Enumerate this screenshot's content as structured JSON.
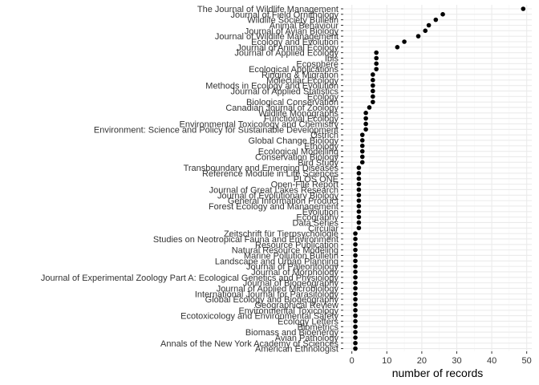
{
  "chart_data": {
    "type": "scatter",
    "title": "",
    "xlabel": "number of records",
    "ylabel": "",
    "xlim": [
      0,
      50
    ],
    "x_ticks": [
      0,
      10,
      20,
      30,
      40,
      50
    ],
    "grid": true,
    "points": [
      {
        "label": "The Journal of Wildlife Management",
        "value": 49
      },
      {
        "label": "Journal of Field Ornithology",
        "value": 26
      },
      {
        "label": "Wildlife Society Bulletin",
        "value": 24
      },
      {
        "label": "Animal Behaviour",
        "value": 22
      },
      {
        "label": "Journal of Avian Biology",
        "value": 21
      },
      {
        "label": "Journal of Wildlife Management",
        "value": 19
      },
      {
        "label": "Ecology and Evolution",
        "value": 15
      },
      {
        "label": "Journal of Animal Ecology",
        "value": 13
      },
      {
        "label": "Journal of Applied Ecology",
        "value": 7
      },
      {
        "label": "Ibis",
        "value": 7
      },
      {
        "label": "Ecosphere",
        "value": 7
      },
      {
        "label": "Ecological Applications",
        "value": 7
      },
      {
        "label": "Ringing & Migration",
        "value": 6
      },
      {
        "label": "Molecular Ecology",
        "value": 6
      },
      {
        "label": "Methods in Ecology and Evolution",
        "value": 6
      },
      {
        "label": "Journal of Applied Statistics",
        "value": 6
      },
      {
        "label": "Ecology",
        "value": 6
      },
      {
        "label": "Biological Conservation",
        "value": 6
      },
      {
        "label": "Canadian Journal of Zoology",
        "value": 5
      },
      {
        "label": "Wildlife Monographs",
        "value": 4
      },
      {
        "label": "Functional Ecology",
        "value": 4
      },
      {
        "label": "Environmental Toxicology and Chemistry",
        "value": 4
      },
      {
        "label": "Environment: Science and Policy for Sustainable Development",
        "value": 4
      },
      {
        "label": "Ostrich",
        "value": 3
      },
      {
        "label": "Global Change Biology",
        "value": 3
      },
      {
        "label": "Ethology",
        "value": 3
      },
      {
        "label": "Ecological Modelling",
        "value": 3
      },
      {
        "label": "Conservation Biology",
        "value": 3
      },
      {
        "label": "Bird Study",
        "value": 3
      },
      {
        "label": "Transboundary and Emerging Diseases",
        "value": 2
      },
      {
        "label": "Reference Module in Life Sciences",
        "value": 2
      },
      {
        "label": "PLOS ONE",
        "value": 2
      },
      {
        "label": "Open-File Report",
        "value": 2
      },
      {
        "label": "Journal of Great Lakes Research",
        "value": 2
      },
      {
        "label": "Journal of Evolutionary Biology",
        "value": 2
      },
      {
        "label": "General Information Product",
        "value": 2
      },
      {
        "label": "Forest Ecology and Management",
        "value": 2
      },
      {
        "label": "Evolution",
        "value": 2
      },
      {
        "label": "Ecography",
        "value": 2
      },
      {
        "label": "Data Series",
        "value": 2
      },
      {
        "label": "Circular",
        "value": 2
      },
      {
        "label": "Zeitschrift für Tierpsychologie",
        "value": 1
      },
      {
        "label": "Studies on Neotropical Fauna and Environment",
        "value": 1
      },
      {
        "label": "Resource Publication",
        "value": 1
      },
      {
        "label": "Natural Resource Modeling",
        "value": 1
      },
      {
        "label": "Marine Pollution Bulletin",
        "value": 1
      },
      {
        "label": "Landscape and Urban Planning",
        "value": 1
      },
      {
        "label": "Journal of Paleontology",
        "value": 1
      },
      {
        "label": "Journal of Morphology",
        "value": 1
      },
      {
        "label": "Journal of Experimental Zoology Part A: Ecological Genetics and Physiology",
        "value": 1
      },
      {
        "label": "Journal of Biogeography",
        "value": 1
      },
      {
        "label": "Journal of Applied Microbiology",
        "value": 1
      },
      {
        "label": "International Journal for Parasitology",
        "value": 1
      },
      {
        "label": "Global Ecology and Biogeography",
        "value": 1
      },
      {
        "label": "Geographical Review",
        "value": 1
      },
      {
        "label": "Environmental Toxicology",
        "value": 1
      },
      {
        "label": "Ecotoxicology and Environmental Safety",
        "value": 1
      },
      {
        "label": "Ecology Letters",
        "value": 1
      },
      {
        "label": "Biometrics",
        "value": 1
      },
      {
        "label": "Biomass and Bioenergy",
        "value": 1
      },
      {
        "label": "Avian Pathology",
        "value": 1
      },
      {
        "label": "Annals of the New York Academy of Sciences",
        "value": 1
      },
      {
        "label": "American Ethnologist",
        "value": 1
      }
    ],
    "colors": {
      "point": "#000000",
      "grid_major": "#ebebeb",
      "grid_minor": "#f5f5f5",
      "text": "#333333"
    }
  }
}
